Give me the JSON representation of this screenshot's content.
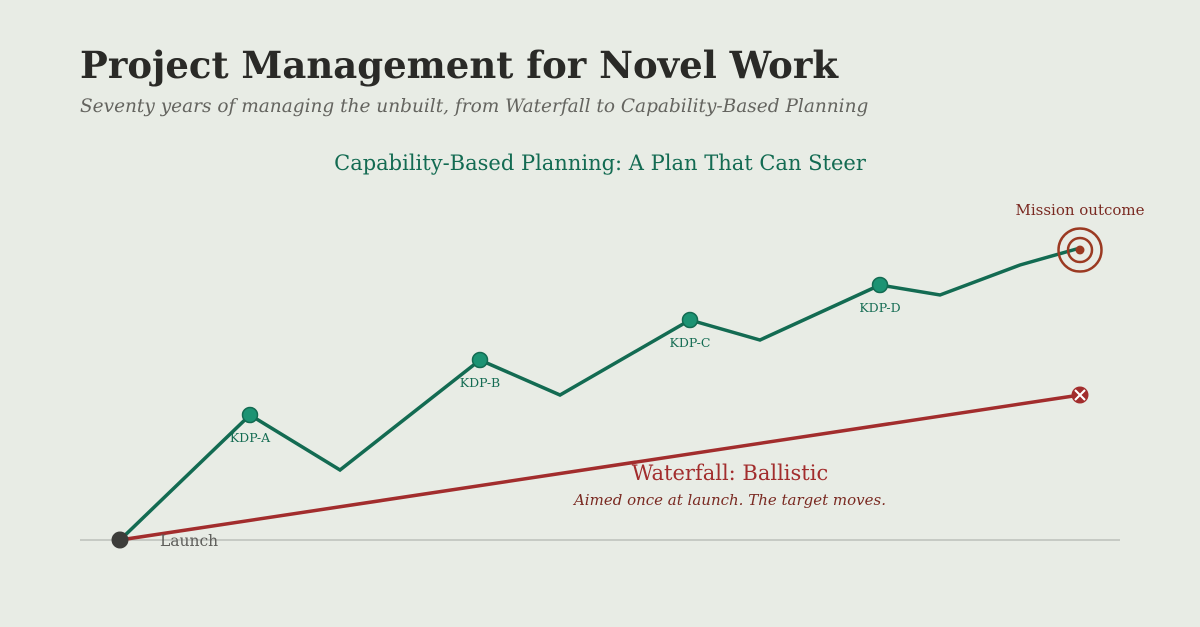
{
  "header": {
    "title": "Project Management for Novel Work",
    "subtitle": "Seventy years of managing the unbuilt, from Waterfall to Capability-Based Planning"
  },
  "capability_path": {
    "heading": "Capability-Based Planning: A Plan That Can Steer",
    "milestones": [
      "KDP-A",
      "KDP-B",
      "KDP-C",
      "KDP-D"
    ]
  },
  "waterfall": {
    "heading": "Waterfall: Ballistic",
    "caption": "Aimed once at launch. The target moves."
  },
  "launch_label": "Launch",
  "outcome_label": "Mission outcome",
  "colors": {
    "background": "#e8ece5",
    "capability": "#136b52",
    "milestone_fill": "#1c9373",
    "waterfall": "#a22d2d",
    "waterfall_text": "#7a2a22",
    "target": "#9b3a22",
    "launch_point": "#3d3d3a",
    "baseline": "#c6cac4"
  },
  "icons": {
    "target": "target-icon",
    "miss": "miss-x-icon",
    "launch": "launch-point-icon"
  }
}
